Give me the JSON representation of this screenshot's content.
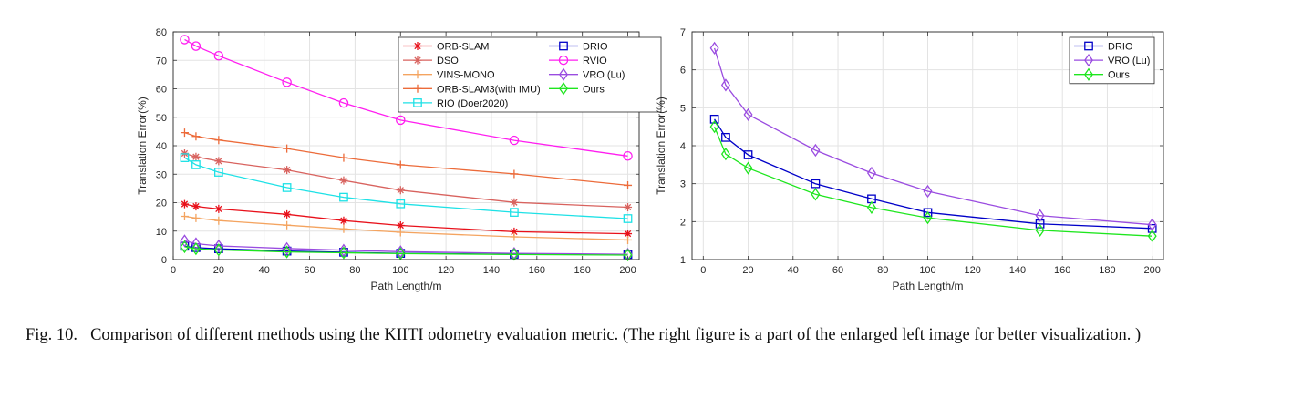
{
  "caption": {
    "label": "Fig. 10.",
    "text": "Comparison of different methods using the KIITI odometry evaluation metric. (The right figure is a part of the enlarged left image for better visualization. )"
  },
  "chart_data": [
    {
      "type": "line",
      "title": "",
      "xlabel": "Path Length/m",
      "ylabel": "Translation Error(%)",
      "x": [
        5,
        10,
        20,
        50,
        75,
        100,
        150,
        200
      ],
      "xlim": [
        0,
        205
      ],
      "ylim": [
        0,
        80
      ],
      "xticks": [
        0,
        20,
        40,
        60,
        80,
        100,
        120,
        140,
        160,
        180,
        200
      ],
      "yticks": [
        0,
        10,
        20,
        30,
        40,
        50,
        60,
        70,
        80
      ],
      "grid": true,
      "legend": "top-right",
      "legend_columns": 2,
      "series": [
        {
          "name": "ORB-SLAM",
          "color": "#e8101a",
          "marker": "asterisk",
          "values": [
            19.5,
            18.7,
            17.8,
            15.9,
            13.7,
            12.0,
            9.8,
            9.1
          ]
        },
        {
          "name": "DSO",
          "color": "#d8625e",
          "marker": "asterisk",
          "values": [
            37.3,
            36.1,
            34.6,
            31.5,
            27.8,
            24.4,
            20.1,
            18.4
          ]
        },
        {
          "name": "VINS-MONO",
          "color": "#f4a460",
          "marker": "plus",
          "values": [
            15.2,
            14.6,
            13.7,
            12.1,
            10.8,
            9.6,
            8.0,
            6.9
          ]
        },
        {
          "name": "ORB-SLAM3(with IMU)",
          "color": "#ec6b3a",
          "marker": "plus",
          "values": [
            44.6,
            43.3,
            42.0,
            39.0,
            35.8,
            33.3,
            30.1,
            26.1
          ]
        },
        {
          "name": "RIO (Doer2020)",
          "color": "#1ee1e6",
          "marker": "square",
          "values": [
            35.8,
            33.3,
            30.7,
            25.3,
            21.9,
            19.6,
            16.6,
            14.4
          ]
        },
        {
          "name": "DRIO",
          "color": "#0000c8",
          "marker": "square",
          "values": [
            4.7,
            4.2,
            3.8,
            3.0,
            2.6,
            2.2,
            1.9,
            1.8
          ]
        },
        {
          "name": "RVIO",
          "color": "#ff1ef0",
          "marker": "circle",
          "values": [
            77.3,
            75.0,
            71.6,
            62.3,
            55.0,
            49.0,
            41.9,
            36.4
          ]
        },
        {
          "name": "VRO (Lu)",
          "color": "#9a4ce0",
          "marker": "diamond",
          "values": [
            6.6,
            5.6,
            4.8,
            3.9,
            3.3,
            2.8,
            2.2,
            1.9
          ]
        },
        {
          "name": "Ours",
          "color": "#1ee61e",
          "marker": "diamond",
          "values": [
            4.5,
            3.8,
            3.4,
            2.7,
            2.4,
            2.1,
            1.8,
            1.6
          ]
        }
      ]
    },
    {
      "type": "line",
      "title": "",
      "xlabel": "Path Length/m",
      "ylabel": "Translation Error(%)",
      "x": [
        5,
        10,
        20,
        50,
        75,
        100,
        150,
        200
      ],
      "xlim": [
        -5,
        205
      ],
      "ylim": [
        1,
        7
      ],
      "xticks": [
        0,
        20,
        40,
        60,
        80,
        100,
        120,
        140,
        160,
        180,
        200
      ],
      "yticks": [
        1,
        2,
        3,
        4,
        5,
        6,
        7
      ],
      "grid": true,
      "legend": "top-right",
      "legend_columns": 1,
      "series": [
        {
          "name": "DRIO",
          "color": "#0000c8",
          "marker": "square",
          "values": [
            4.7,
            4.22,
            3.76,
            3.0,
            2.6,
            2.24,
            1.94,
            1.82
          ]
        },
        {
          "name": "VRO (Lu)",
          "color": "#9a4ce0",
          "marker": "diamond",
          "values": [
            6.57,
            5.6,
            4.82,
            3.88,
            3.28,
            2.8,
            2.16,
            1.92
          ]
        },
        {
          "name": "Ours",
          "color": "#1ee61e",
          "marker": "diamond",
          "values": [
            4.5,
            3.78,
            3.41,
            2.72,
            2.37,
            2.1,
            1.77,
            1.62
          ]
        }
      ]
    }
  ]
}
